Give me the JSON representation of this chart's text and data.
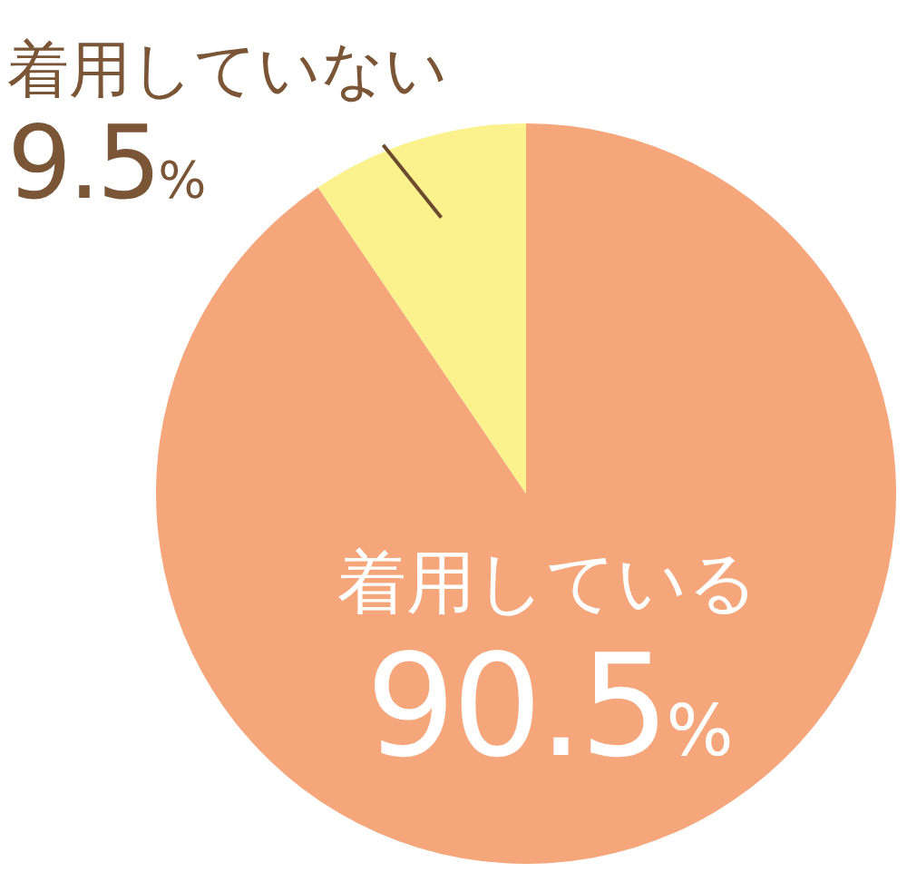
{
  "chart_data": {
    "type": "pie",
    "categories": [
      "着用している",
      "着用していない"
    ],
    "values": [
      90.5,
      9.5
    ],
    "colors": [
      "#f6a67b",
      "#fbf28e"
    ],
    "value_labels": [
      "90.5%",
      "9.5%"
    ],
    "legend": false
  }
}
